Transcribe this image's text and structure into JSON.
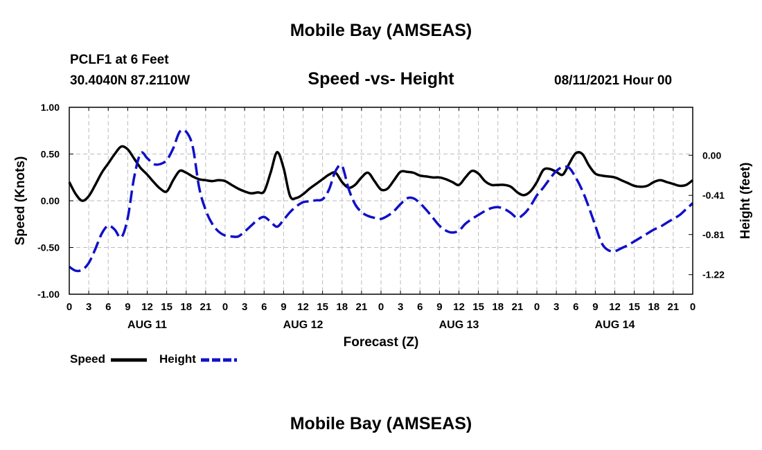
{
  "header": {
    "title": "Mobile Bay (AMSEAS)",
    "station": "PCLF1 at 6 Feet",
    "coords": "30.4040N  87.2110W",
    "subtitle": "Speed -vs- Height",
    "datetime": "08/11/2021 Hour 00"
  },
  "footer": {
    "title": "Mobile Bay (AMSEAS)"
  },
  "legend": {
    "speed_label": "Speed",
    "height_label": "Height"
  },
  "chart_data": {
    "type": "line",
    "xlabel": "Forecast (Z)",
    "ylabel_left": "Speed (Knots)",
    "ylabel_right": "Height (feet)",
    "x_range_hours": [
      0,
      96
    ],
    "x_tick_step_hours": 3,
    "x_tick_labels": [
      "0",
      "3",
      "6",
      "9",
      "12",
      "15",
      "18",
      "21",
      "0",
      "3",
      "6",
      "9",
      "12",
      "15",
      "18",
      "21",
      "0",
      "3",
      "6",
      "9",
      "12",
      "15",
      "18",
      "21",
      "0",
      "3",
      "6",
      "9",
      "12",
      "15",
      "18",
      "21",
      "0"
    ],
    "date_labels": [
      {
        "hour": 12,
        "label": "AUG 11"
      },
      {
        "hour": 36,
        "label": "AUG 12"
      },
      {
        "hour": 60,
        "label": "AUG 13"
      },
      {
        "hour": 84,
        "label": "AUG 14"
      }
    ],
    "y_left": {
      "min": -1.0,
      "max": 1.0,
      "ticks": [
        -1.0,
        -0.5,
        0.0,
        0.5,
        1.0
      ],
      "tick_labels": [
        "-1.00",
        "-0.50",
        "0.00",
        "0.50",
        "1.00"
      ]
    },
    "y_right": {
      "min": -1.42,
      "max": 0.49,
      "ticks": [
        0.0,
        -0.41,
        -0.81,
        -1.22
      ],
      "tick_labels": [
        "0.00",
        "-0.41",
        "-0.81",
        "-1.22"
      ]
    },
    "grid": true,
    "colors": {
      "speed": "#000000",
      "height": "#1010c8",
      "grid": "#bbbbbb"
    },
    "series": [
      {
        "name": "Speed",
        "axis": "left",
        "style": "solid",
        "x": [
          0,
          1,
          2,
          3,
          4,
          5,
          6,
          7,
          8,
          9,
          10,
          11,
          12,
          13,
          14,
          15,
          16,
          17,
          18,
          19,
          20,
          21,
          22,
          23,
          24,
          25,
          26,
          27,
          28,
          29,
          30,
          31,
          32,
          33,
          34,
          35,
          36,
          37,
          38,
          39,
          40,
          41,
          42,
          43,
          44,
          45,
          46,
          47,
          48,
          49,
          50,
          51,
          52,
          53,
          54,
          55,
          56,
          57,
          58,
          59,
          60,
          61,
          62,
          63,
          64,
          65,
          66,
          67,
          68,
          69,
          70,
          71,
          72,
          73,
          74,
          75,
          76,
          77,
          78,
          79,
          80,
          81,
          82,
          83,
          84,
          85,
          86,
          87,
          88,
          89,
          90,
          91,
          92,
          93,
          94,
          95,
          96
        ],
        "values": [
          0.2,
          0.07,
          0.0,
          0.05,
          0.17,
          0.3,
          0.4,
          0.5,
          0.58,
          0.55,
          0.45,
          0.35,
          0.28,
          0.2,
          0.13,
          0.1,
          0.22,
          0.32,
          0.3,
          0.26,
          0.23,
          0.22,
          0.21,
          0.22,
          0.21,
          0.17,
          0.13,
          0.1,
          0.08,
          0.09,
          0.1,
          0.3,
          0.52,
          0.35,
          0.05,
          0.03,
          0.07,
          0.13,
          0.18,
          0.23,
          0.28,
          0.3,
          0.2,
          0.14,
          0.17,
          0.25,
          0.3,
          0.21,
          0.12,
          0.13,
          0.22,
          0.31,
          0.31,
          0.3,
          0.27,
          0.26,
          0.25,
          0.25,
          0.23,
          0.2,
          0.17,
          0.25,
          0.32,
          0.29,
          0.21,
          0.17,
          0.17,
          0.17,
          0.15,
          0.09,
          0.06,
          0.1,
          0.2,
          0.33,
          0.34,
          0.31,
          0.28,
          0.4,
          0.51,
          0.5,
          0.38,
          0.29,
          0.27,
          0.26,
          0.25,
          0.22,
          0.19,
          0.16,
          0.15,
          0.16,
          0.2,
          0.22,
          0.2,
          0.18,
          0.16,
          0.17,
          0.22
        ]
      },
      {
        "name": "Height",
        "axis": "right",
        "style": "dashed",
        "x": [
          0,
          1,
          2,
          3,
          4,
          5,
          6,
          7,
          8,
          9,
          10,
          11,
          12,
          13,
          14,
          15,
          16,
          17,
          18,
          19,
          20,
          21,
          22,
          23,
          24,
          25,
          26,
          27,
          28,
          29,
          30,
          31,
          32,
          33,
          34,
          35,
          36,
          37,
          38,
          39,
          40,
          41,
          42,
          43,
          44,
          45,
          46,
          47,
          48,
          49,
          50,
          51,
          52,
          53,
          54,
          55,
          56,
          57,
          58,
          59,
          60,
          61,
          62,
          63,
          64,
          65,
          66,
          67,
          68,
          69,
          70,
          71,
          72,
          73,
          74,
          75,
          76,
          77,
          78,
          79,
          80,
          81,
          82,
          83,
          84,
          85,
          86,
          87,
          88,
          89,
          90,
          91,
          92,
          93,
          94,
          95,
          96
        ],
        "values": [
          -1.14,
          -1.18,
          -1.17,
          -1.1,
          -0.96,
          -0.8,
          -0.72,
          -0.76,
          -0.84,
          -0.64,
          -0.22,
          0.02,
          -0.03,
          -0.09,
          -0.09,
          -0.05,
          0.07,
          0.24,
          0.24,
          0.09,
          -0.33,
          -0.56,
          -0.7,
          -0.78,
          -0.82,
          -0.83,
          -0.83,
          -0.78,
          -0.72,
          -0.66,
          -0.63,
          -0.68,
          -0.73,
          -0.66,
          -0.58,
          -0.52,
          -0.48,
          -0.47,
          -0.46,
          -0.45,
          -0.35,
          -0.16,
          -0.11,
          -0.34,
          -0.5,
          -0.58,
          -0.62,
          -0.64,
          -0.65,
          -0.62,
          -0.57,
          -0.5,
          -0.44,
          -0.44,
          -0.49,
          -0.56,
          -0.64,
          -0.72,
          -0.77,
          -0.79,
          -0.77,
          -0.7,
          -0.65,
          -0.61,
          -0.57,
          -0.54,
          -0.53,
          -0.55,
          -0.59,
          -0.64,
          -0.6,
          -0.52,
          -0.41,
          -0.33,
          -0.24,
          -0.16,
          -0.12,
          -0.13,
          -0.23,
          -0.36,
          -0.53,
          -0.72,
          -0.9,
          -0.97,
          -0.98,
          -0.95,
          -0.92,
          -0.88,
          -0.84,
          -0.8,
          -0.76,
          -0.73,
          -0.69,
          -0.65,
          -0.61,
          -0.55,
          -0.49
        ]
      }
    ]
  }
}
